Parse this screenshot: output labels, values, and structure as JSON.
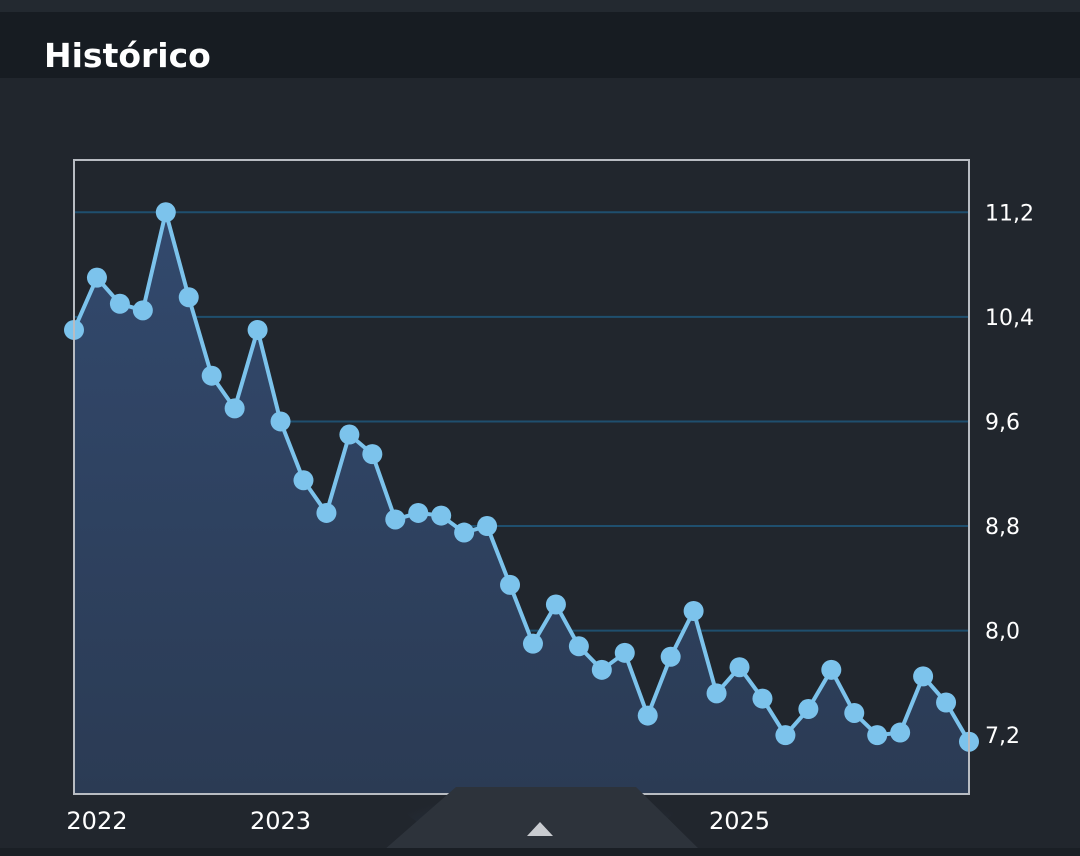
{
  "header": {
    "title": "Histórico"
  },
  "handle": {
    "icon": "chevron-up-icon"
  },
  "colors": {
    "line": "#7cc3ec",
    "grid": "#1f4f6e",
    "frame": "#b8bcc2",
    "area_top": "#31476a",
    "area_bottom": "#2b3a52"
  },
  "chart_data": {
    "type": "area",
    "title": "",
    "xlabel": "",
    "ylabel": "",
    "y_axis_position": "right",
    "grid": true,
    "ylim": [
      6.75,
      11.6
    ],
    "y_ticks": [
      7.2,
      8.0,
      8.8,
      9.6,
      10.4,
      11.2
    ],
    "y_tick_labels": [
      "7,2",
      "8,0",
      "8,8",
      "9,6",
      "10,4",
      "11,2"
    ],
    "x_tick_labels": [
      "2022",
      "2023",
      "2025"
    ],
    "x_tick_positions": [
      1.0,
      9.0,
      29.0
    ],
    "x_range": [
      0,
      39
    ],
    "series": [
      {
        "values": [
          10.3,
          10.7,
          10.5,
          10.45,
          11.2,
          10.55,
          9.95,
          9.7,
          10.3,
          9.6,
          9.15,
          8.9,
          9.5,
          9.35,
          8.85,
          8.9,
          8.88,
          8.75,
          8.8,
          8.35,
          7.9,
          8.2,
          7.88,
          7.7,
          7.83,
          7.35,
          7.8,
          8.15,
          7.52,
          7.72,
          7.48,
          7.2,
          7.4,
          7.7,
          7.37,
          7.2,
          7.22,
          7.65,
          7.45,
          7.15
        ]
      }
    ]
  }
}
